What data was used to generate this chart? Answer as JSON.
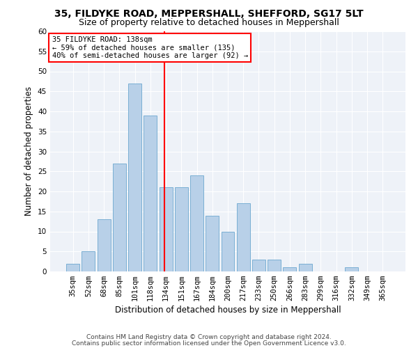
{
  "title1": "35, FILDYKE ROAD, MEPPERSHALL, SHEFFORD, SG17 5LT",
  "title2": "Size of property relative to detached houses in Meppershall",
  "xlabel": "Distribution of detached houses by size in Meppershall",
  "ylabel": "Number of detached properties",
  "categories": [
    "35sqm",
    "52sqm",
    "68sqm",
    "85sqm",
    "101sqm",
    "118sqm",
    "134sqm",
    "151sqm",
    "167sqm",
    "184sqm",
    "200sqm",
    "217sqm",
    "233sqm",
    "250sqm",
    "266sqm",
    "283sqm",
    "299sqm",
    "316sqm",
    "332sqm",
    "349sqm",
    "365sqm"
  ],
  "values": [
    2,
    5,
    13,
    27,
    47,
    39,
    21,
    21,
    24,
    14,
    10,
    17,
    3,
    3,
    1,
    2,
    0,
    0,
    1,
    0,
    0
  ],
  "bar_color": "#b8d0e8",
  "bar_edge_color": "#7aafd4",
  "vline_index": 6,
  "vline_color": "red",
  "annotation_line1": "35 FILDYKE ROAD: 138sqm",
  "annotation_line2": "← 59% of detached houses are smaller (135)",
  "annotation_line3": "40% of semi-detached houses are larger (92) →",
  "annotation_box_color": "white",
  "annotation_box_edge_color": "red",
  "ylim": [
    0,
    60
  ],
  "yticks": [
    0,
    5,
    10,
    15,
    20,
    25,
    30,
    35,
    40,
    45,
    50,
    55,
    60
  ],
  "footer1": "Contains HM Land Registry data © Crown copyright and database right 2024.",
  "footer2": "Contains public sector information licensed under the Open Government Licence v3.0.",
  "bg_color": "#eef2f8",
  "title1_fontsize": 10,
  "title2_fontsize": 9,
  "xlabel_fontsize": 8.5,
  "ylabel_fontsize": 8.5,
  "tick_fontsize": 7.5,
  "annotation_fontsize": 7.5,
  "footer_fontsize": 6.5
}
